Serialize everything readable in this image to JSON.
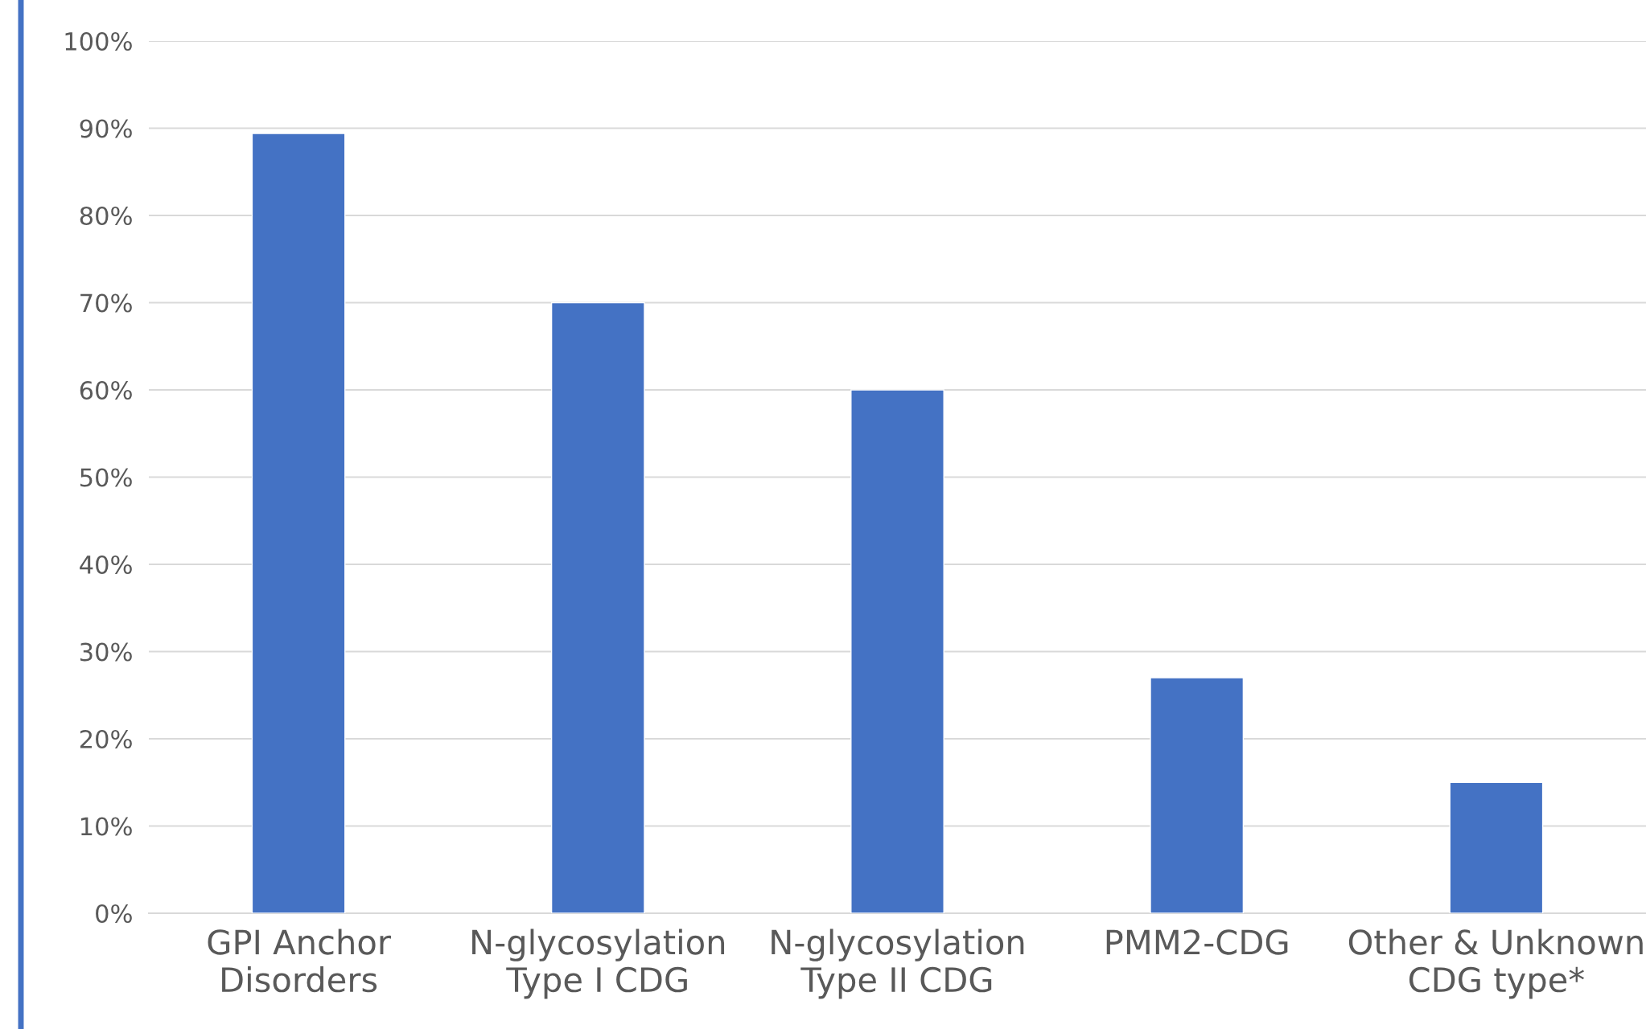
{
  "chart_data": {
    "type": "bar",
    "categories": [
      "GPI Anchor\nDisorders",
      "N-glycosylation\nType I CDG",
      "N-glycosylation\nType II CDG",
      "PMM2-CDG",
      "Other & Unknown\nCDG type*"
    ],
    "values": [
      89.4,
      70,
      60,
      27,
      15
    ],
    "color": "#4472c4",
    "ylim": [
      0,
      100
    ],
    "yticks": [
      {
        "value": 0,
        "label": "0%"
      },
      {
        "value": 10,
        "label": "10%"
      },
      {
        "value": 20,
        "label": "20%"
      },
      {
        "value": 30,
        "label": "30%"
      },
      {
        "value": 40,
        "label": "40%"
      },
      {
        "value": 50,
        "label": "50%"
      },
      {
        "value": 60,
        "label": "60%"
      },
      {
        "value": 70,
        "label": "70%"
      },
      {
        "value": 80,
        "label": "80%"
      },
      {
        "value": 90,
        "label": "90%"
      },
      {
        "value": 100,
        "label": "100%"
      }
    ],
    "grid": "y",
    "legend": false
  }
}
